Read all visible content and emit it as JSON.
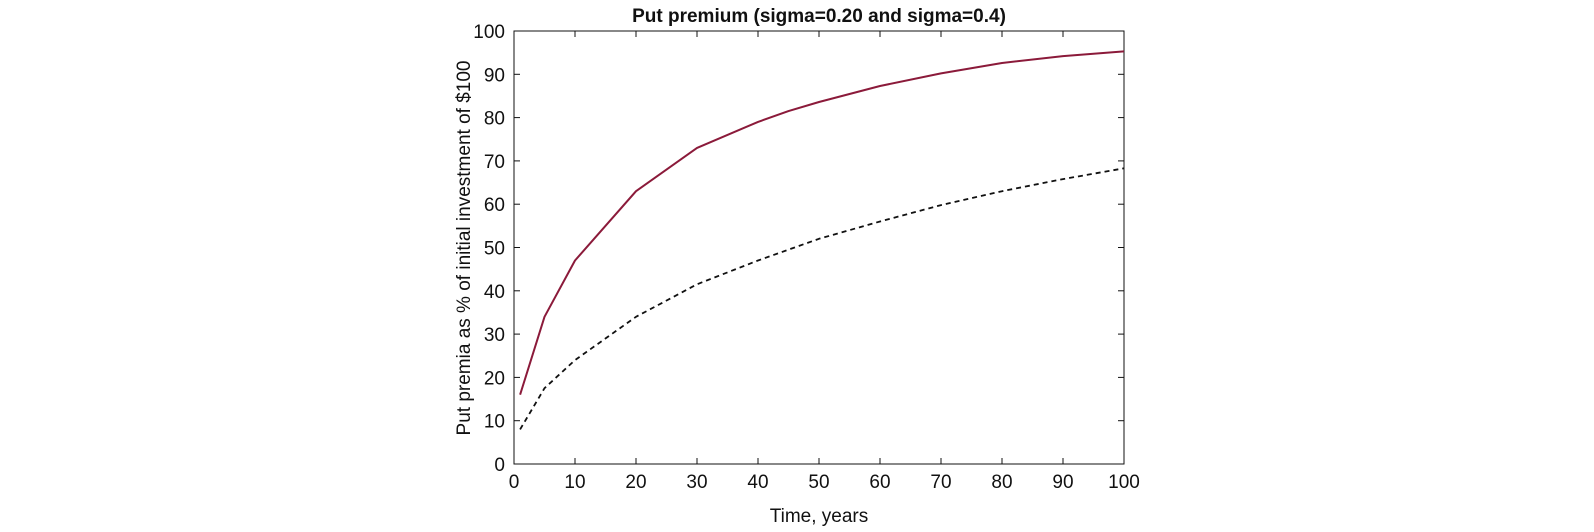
{
  "chart_data": {
    "type": "line",
    "title": "Put premium (sigma=0.20 and sigma=0.4)",
    "xlabel": "Time, years",
    "ylabel": "Put premia as % of initial investment of $100",
    "xlim": [
      0,
      100
    ],
    "ylim": [
      0,
      100
    ],
    "xticks": [
      "0",
      "10",
      "20",
      "30",
      "40",
      "50",
      "60",
      "70",
      "80",
      "90",
      "100"
    ],
    "yticks": [
      "0",
      "10",
      "20",
      "30",
      "40",
      "50",
      "60",
      "70",
      "80",
      "90",
      "100"
    ],
    "grid": false,
    "legend": false,
    "series": [
      {
        "color": "#8b1a3a",
        "style": "solid",
        "x": [
          1,
          5,
          10,
          20,
          30,
          40,
          45,
          50,
          60,
          70,
          80,
          90,
          100
        ],
        "y": [
          16,
          34,
          47,
          63,
          73,
          79,
          81.5,
          83.6,
          87.3,
          90.2,
          92.6,
          94.2,
          95.3
        ]
      },
      {
        "color": "#111111",
        "style": "dashed",
        "x": [
          1,
          5,
          10,
          20,
          30,
          40,
          50,
          60,
          70,
          80,
          90,
          100
        ],
        "y": [
          8,
          17.5,
          24,
          34,
          41.5,
          47,
          52,
          56,
          59.8,
          63,
          65.8,
          68.3
        ]
      }
    ]
  }
}
